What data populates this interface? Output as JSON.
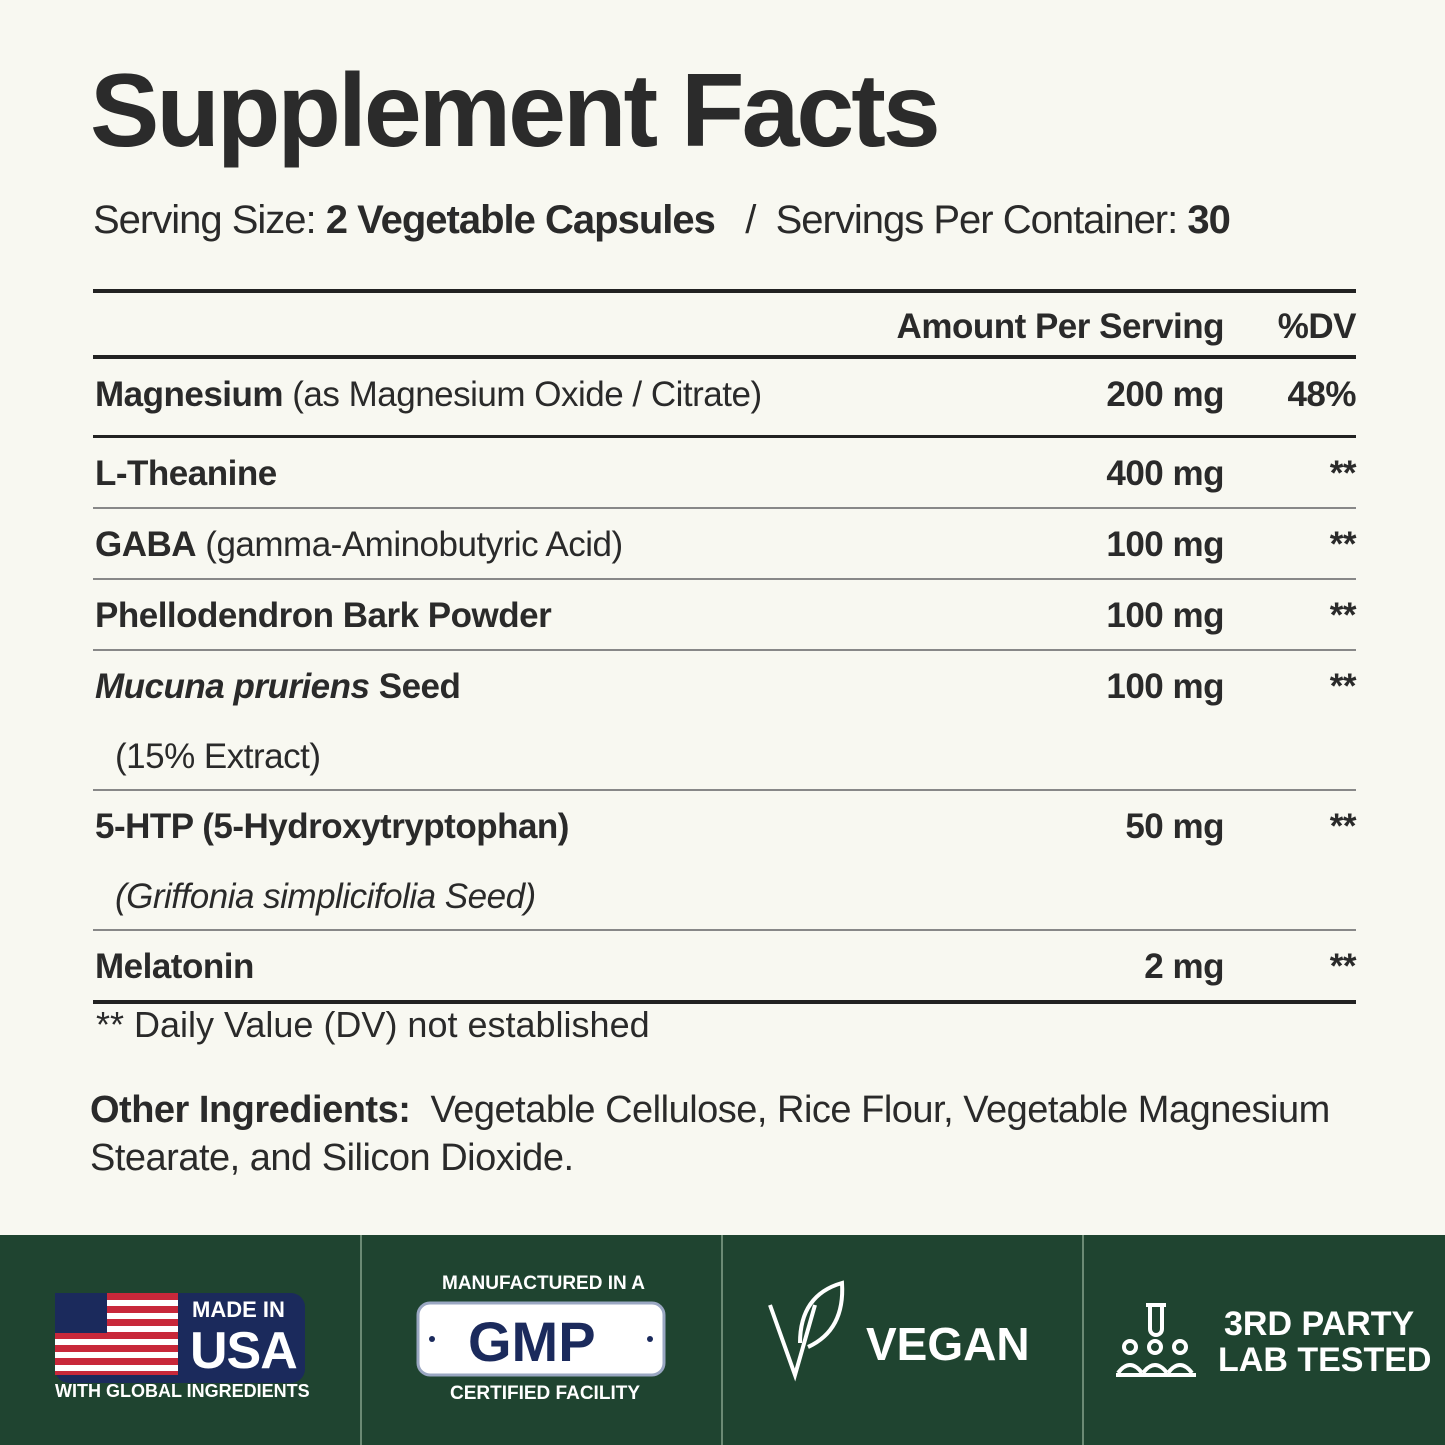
{
  "title": "Supplement Facts",
  "serving": {
    "size_label": "Serving Size:",
    "size_value": "2 Vegetable Capsules",
    "separator": "/",
    "servings_label": "Servings Per Container:",
    "servings_value": "30"
  },
  "table": {
    "header": {
      "amount": "Amount Per Serving",
      "dv": "%DV"
    },
    "rows": [
      {
        "name": "Magnesium",
        "detail": "(as Magnesium Oxide / Citrate)",
        "amount": "200 mg",
        "dv": "48%"
      },
      {
        "name": "L-Theanine",
        "amount": "400 mg",
        "dv": "**"
      },
      {
        "name": "GABA",
        "detail": "(gamma-Aminobutyric Acid)",
        "amount": "100 mg",
        "dv": "**"
      },
      {
        "name": "Phellodendron Bark Powder",
        "amount": "100 mg",
        "dv": "**"
      },
      {
        "name_italic": "Mucuna pruriens",
        "name": "Seed",
        "sub": "(15% Extract)",
        "amount": "100 mg",
        "dv": "**"
      },
      {
        "name": "5-HTP (5-Hydroxytryptophan)",
        "sub": "(Griffonia simplicifolia Seed)",
        "amount": "50 mg",
        "dv": "**"
      },
      {
        "name": "Melatonin",
        "amount": "2 mg",
        "dv": "**"
      }
    ],
    "footnote": "** Daily Value (DV) not established"
  },
  "other_ingredients": {
    "label": "Other Ingredients:",
    "text": "Vegetable Cellulose, Rice Flour, Vegetable Magnesium Stearate, and Silicon Dioxide."
  },
  "badges": [
    {
      "top": "MADE IN",
      "main": "USA",
      "bottom": "WITH GLOBAL INGREDIENTS"
    },
    {
      "top": "MANUFACTURED IN A",
      "main": "GMP",
      "bottom": "CERTIFIED FACILITY"
    },
    {
      "main": "VEGAN"
    },
    {
      "line1": "3RD PARTY",
      "line2": "LAB TESTED"
    }
  ]
}
